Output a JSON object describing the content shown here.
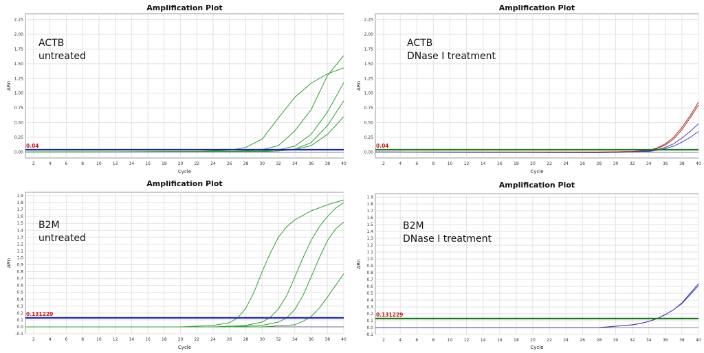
{
  "chart_data": [
    {
      "type": "line",
      "title": "Amplification Plot",
      "xlabel": "Cycle",
      "ylabel": "ΔRn",
      "annotation": [
        "ACTB",
        "untreated"
      ],
      "threshold": {
        "value": 0.04,
        "label": "0.04",
        "color": "#1a22b0"
      },
      "xlim": [
        1,
        40
      ],
      "ylim": [
        -0.1,
        2.35
      ],
      "xticks": [
        2,
        4,
        6,
        8,
        10,
        12,
        14,
        16,
        18,
        20,
        22,
        24,
        26,
        28,
        30,
        32,
        34,
        36,
        38,
        40
      ],
      "xtick_labels": [
        "2",
        "4",
        "6",
        "8",
        "10",
        "12",
        "14",
        "16",
        "18",
        "20",
        "22",
        "24",
        "26",
        "28",
        "30",
        "32",
        "34",
        "36",
        "38",
        "40"
      ],
      "yticks": [
        0,
        0.25,
        0.5,
        0.75,
        1,
        1.25,
        1.5,
        1.75,
        2,
        2.25
      ],
      "ytick_labels": [
        "0.00",
        "0.25",
        "0.50",
        "0.75",
        "1.00",
        "1.25",
        "1.50",
        "1.75",
        "2.00",
        "2.25"
      ],
      "grid": true,
      "series": [
        {
          "color": "#2ca02c",
          "x": [
            1,
            22,
            26,
            28,
            30,
            32,
            34,
            36,
            38,
            40
          ],
          "y": [
            0,
            0.01,
            0.03,
            0.08,
            0.22,
            0.58,
            0.93,
            1.17,
            1.33,
            1.43
          ]
        },
        {
          "color": "#2ca02c",
          "x": [
            1,
            26,
            28,
            30,
            32,
            34,
            36,
            38,
            40
          ],
          "y": [
            0,
            0.01,
            0.02,
            0.04,
            0.11,
            0.36,
            0.72,
            1.3,
            1.64
          ]
        },
        {
          "color": "#2ca02c",
          "x": [
            1,
            28,
            30,
            32,
            34,
            36,
            38,
            40
          ],
          "y": [
            0,
            0.01,
            0.02,
            0.04,
            0.1,
            0.3,
            0.68,
            1.18
          ]
        },
        {
          "color": "#2ca02c",
          "x": [
            1,
            30,
            32,
            34,
            36,
            38,
            40
          ],
          "y": [
            0,
            0.01,
            0.02,
            0.05,
            0.16,
            0.45,
            0.87
          ]
        },
        {
          "color": "#2ca02c",
          "x": [
            1,
            30,
            32,
            34,
            36,
            38,
            40
          ],
          "y": [
            0,
            0.01,
            0.02,
            0.04,
            0.11,
            0.3,
            0.6
          ]
        }
      ]
    },
    {
      "type": "line",
      "title": "Amplification Plot",
      "xlabel": "Cycle",
      "ylabel": "ΔRn",
      "annotation": [
        "ACTB",
        "DNase I treatment"
      ],
      "threshold": {
        "value": 0.04,
        "label": "0.04",
        "color": "#1a7a1a"
      },
      "xlim": [
        1,
        40
      ],
      "ylim": [
        -0.1,
        2.35
      ],
      "xticks": [
        2,
        4,
        6,
        8,
        10,
        12,
        14,
        16,
        18,
        20,
        22,
        24,
        26,
        28,
        30,
        32,
        34,
        36,
        38,
        40
      ],
      "xtick_labels": [
        "2",
        "4",
        "6",
        "8",
        "10",
        "12",
        "14",
        "16",
        "18",
        "20",
        "22",
        "24",
        "26",
        "28",
        "30",
        "32",
        "34",
        "36",
        "38",
        "40"
      ],
      "yticks": [
        0,
        0.25,
        0.5,
        0.75,
        1,
        1.25,
        1.5,
        1.75,
        2,
        2.25
      ],
      "ytick_labels": [
        "0.00",
        "0.25",
        "0.50",
        "0.75",
        "1.00",
        "1.25",
        "1.50",
        "1.75",
        "2.00",
        "2.25"
      ],
      "grid": true,
      "series": [
        {
          "color": "#b22a2a",
          "x": [
            1,
            28,
            32,
            34,
            35,
            36,
            37,
            38,
            39,
            40
          ],
          "y": [
            0,
            0.0,
            0.01,
            0.03,
            0.07,
            0.14,
            0.25,
            0.42,
            0.62,
            0.85
          ]
        },
        {
          "color": "#b22a2a",
          "x": [
            1,
            28,
            32,
            34,
            35,
            36,
            37,
            38,
            39,
            40
          ],
          "y": [
            0,
            0.0,
            0.01,
            0.03,
            0.06,
            0.12,
            0.22,
            0.38,
            0.58,
            0.8
          ]
        },
        {
          "color": "#4040c0",
          "x": [
            1,
            28,
            32,
            34,
            35,
            36,
            37,
            38,
            39,
            40
          ],
          "y": [
            0,
            -0.01,
            0.0,
            0.02,
            0.04,
            0.08,
            0.14,
            0.24,
            0.35,
            0.48
          ]
        },
        {
          "color": "#4040c0",
          "x": [
            1,
            28,
            32,
            34,
            35,
            36,
            37,
            38,
            39,
            40
          ],
          "y": [
            0,
            -0.01,
            0.0,
            0.01,
            0.03,
            0.06,
            0.1,
            0.17,
            0.25,
            0.35
          ]
        }
      ]
    },
    {
      "type": "line",
      "title": "Amplification Plot",
      "xlabel": "Cycle",
      "ylabel": "ΔRn",
      "annotation": [
        "B2M",
        "untreated"
      ],
      "threshold": {
        "value": 0.131229,
        "label": "0.131229",
        "color": "#1a22b0"
      },
      "xlim": [
        1,
        40
      ],
      "ylim": [
        -0.1,
        1.95
      ],
      "xticks": [
        2,
        4,
        6,
        8,
        10,
        12,
        14,
        16,
        18,
        20,
        22,
        24,
        26,
        28,
        30,
        32,
        34,
        36,
        38,
        40
      ],
      "xtick_labels": [
        "2",
        "4",
        "6",
        "8",
        "10",
        "12",
        "14",
        "16",
        "18",
        "20",
        "22",
        "24",
        "26",
        "28",
        "30",
        "32",
        "34",
        "36",
        "38",
        "40"
      ],
      "yticks": [
        -0.1,
        0,
        0.1,
        0.2,
        0.3,
        0.4,
        0.5,
        0.6,
        0.7,
        0.8,
        0.9,
        1,
        1.1,
        1.2,
        1.3,
        1.4,
        1.5,
        1.6,
        1.7,
        1.8,
        1.9
      ],
      "ytick_labels": [
        "-0.1",
        "0.0",
        "0.1",
        "0.2",
        "0.3",
        "0.4",
        "0.5",
        "0.6",
        "0.7",
        "0.8",
        "0.9",
        "1.0",
        "1.1",
        "1.2",
        "1.3",
        "1.4",
        "1.5",
        "1.6",
        "1.7",
        "1.8",
        "1.9"
      ],
      "grid": true,
      "series": [
        {
          "color": "#2ca02c",
          "x": [
            1,
            20,
            24,
            26,
            27,
            28,
            29,
            30,
            31,
            32,
            33,
            34,
            36,
            38,
            40
          ],
          "y": [
            0,
            0,
            0.02,
            0.06,
            0.13,
            0.27,
            0.5,
            0.8,
            1.07,
            1.3,
            1.45,
            1.55,
            1.68,
            1.77,
            1.84
          ]
        },
        {
          "color": "#2ca02c",
          "x": [
            1,
            24,
            28,
            30,
            31,
            32,
            33,
            34,
            35,
            36,
            37,
            38,
            39,
            40
          ],
          "y": [
            0,
            0,
            0.02,
            0.07,
            0.14,
            0.26,
            0.45,
            0.72,
            1.0,
            1.25,
            1.45,
            1.6,
            1.72,
            1.8
          ]
        },
        {
          "color": "#2ca02c",
          "x": [
            1,
            26,
            30,
            32,
            33,
            34,
            35,
            36,
            37,
            38,
            39,
            40
          ],
          "y": [
            0,
            0,
            0.02,
            0.07,
            0.13,
            0.25,
            0.45,
            0.72,
            1.0,
            1.25,
            1.42,
            1.52
          ]
        },
        {
          "color": "#2ca02c",
          "x": [
            1,
            30,
            34,
            35,
            36,
            37,
            38,
            39,
            40
          ],
          "y": [
            0,
            0.0,
            0.03,
            0.08,
            0.15,
            0.27,
            0.43,
            0.6,
            0.77
          ]
        }
      ]
    },
    {
      "type": "line",
      "title": "Amplification Plot",
      "xlabel": "Cycle",
      "ylabel": "ΔRn",
      "annotation": [
        "B2M",
        "DNase I treatment"
      ],
      "threshold": {
        "value": 0.131229,
        "label": "0.131229",
        "color": "#1a7a1a"
      },
      "xlim": [
        1,
        40
      ],
      "ylim": [
        -0.1,
        1.95
      ],
      "xticks": [
        2,
        4,
        6,
        8,
        10,
        12,
        14,
        16,
        18,
        20,
        22,
        24,
        26,
        28,
        30,
        32,
        34,
        36,
        38,
        40
      ],
      "xtick_labels": [
        "2",
        "4",
        "6",
        "8",
        "10",
        "12",
        "14",
        "16",
        "18",
        "20",
        "22",
        "24",
        "26",
        "28",
        "30",
        "32",
        "34",
        "36",
        "38",
        "40"
      ],
      "yticks": [
        -0.1,
        0,
        0.1,
        0.2,
        0.3,
        0.4,
        0.5,
        0.6,
        0.7,
        0.8,
        0.9,
        1,
        1.1,
        1.2,
        1.3,
        1.4,
        1.5,
        1.6,
        1.7,
        1.8,
        1.9
      ],
      "ytick_labels": [
        "-0.1",
        "0.0",
        "0.1",
        "0.2",
        "0.3",
        "0.4",
        "0.5",
        "0.6",
        "0.7",
        "0.8",
        "0.9",
        "1.0",
        "1.1",
        "1.2",
        "1.3",
        "1.4",
        "1.5",
        "1.6",
        "1.7",
        "1.8",
        "1.9"
      ],
      "grid": true,
      "series": [
        {
          "color": "#3a3ab8",
          "x": [
            1,
            28,
            30,
            32,
            33,
            34,
            35,
            36,
            37,
            38,
            39,
            40
          ],
          "y": [
            0,
            0.0,
            0.02,
            0.04,
            0.06,
            0.09,
            0.13,
            0.19,
            0.26,
            0.36,
            0.5,
            0.64
          ]
        },
        {
          "color": "#3a3ab8",
          "x": [
            1,
            28,
            30,
            32,
            33,
            34,
            35,
            36,
            37,
            38,
            39,
            40
          ],
          "y": [
            0,
            0.0,
            0.02,
            0.04,
            0.06,
            0.09,
            0.13,
            0.19,
            0.26,
            0.35,
            0.48,
            0.61
          ]
        }
      ]
    }
  ]
}
